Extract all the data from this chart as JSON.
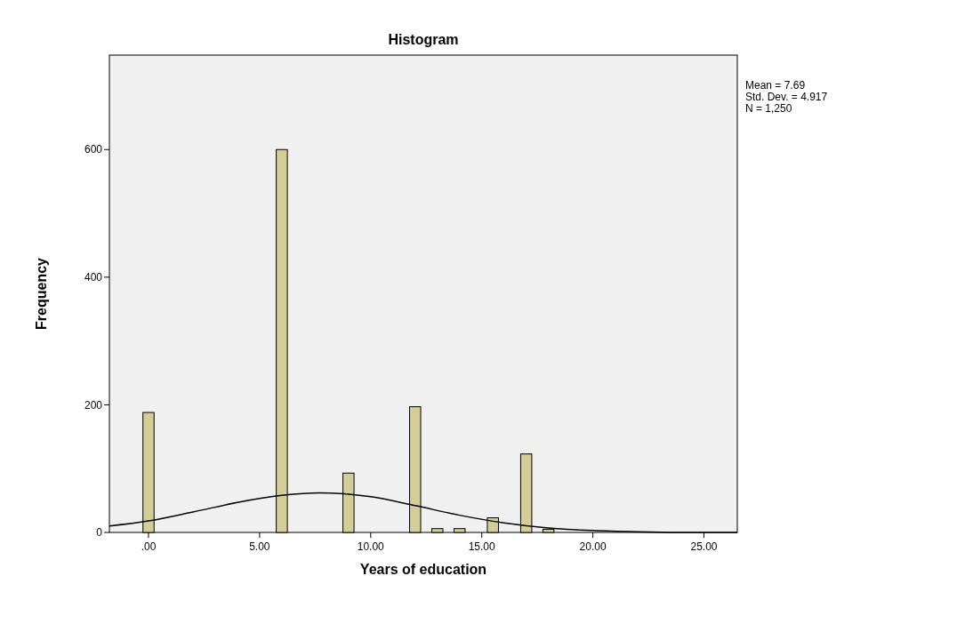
{
  "chart_data": {
    "type": "histogram",
    "title": "Histogram",
    "xlabel": "Years of education",
    "ylabel": "Frequency",
    "bins": [
      -0.25,
      0.25,
      0.75,
      1.25,
      1.75,
      2.25,
      2.75,
      3.25,
      3.75,
      4.25,
      4.75,
      5.25,
      5.75,
      6.25,
      6.75,
      7.25,
      7.75,
      8.25,
      8.75,
      9.25,
      9.75,
      10.25,
      10.75,
      11.25,
      11.75,
      12.25,
      12.75,
      13.25,
      13.75,
      14.25,
      14.75,
      15.25,
      15.75,
      16.25,
      16.75,
      17.25,
      17.75,
      18.25
    ],
    "values": [
      188,
      0,
      0,
      0,
      0,
      0,
      0,
      0,
      0,
      0,
      0,
      0,
      600,
      0,
      0,
      0,
      0,
      0,
      93,
      0,
      0,
      0,
      0,
      0,
      197,
      0,
      6,
      0,
      6,
      0,
      0,
      23,
      0,
      0,
      123,
      0,
      5
    ],
    "color": "#d3ce97",
    "series": [
      {
        "type": "line",
        "color": "#000000",
        "x": [
          -1.76,
          0,
          2,
          4,
          6,
          7.69,
          10,
          12,
          14,
          16,
          18,
          20,
          22,
          24,
          26.5
        ],
        "values": [
          10,
          18,
          32,
          47,
          58,
          62,
          56,
          42,
          27,
          15,
          7,
          3,
          1,
          0,
          0
        ]
      }
    ],
    "xlim": [
      -1.76,
      26.5
    ],
    "xticks": [
      {
        "value": 0,
        "label": ".00"
      },
      {
        "value": 5,
        "label": "5.00"
      },
      {
        "value": 10,
        "label": "10.00"
      },
      {
        "value": 15,
        "label": "15.00"
      },
      {
        "value": 20,
        "label": "20.00"
      },
      {
        "value": 25,
        "label": "25.00"
      }
    ],
    "ylim": [
      0,
      748
    ],
    "yticks": [
      0,
      200,
      400,
      600
    ],
    "grid": false,
    "annotations": [
      "Mean = 7.69",
      "Std. Dev. = 4.917",
      "N = 1,250"
    ]
  }
}
